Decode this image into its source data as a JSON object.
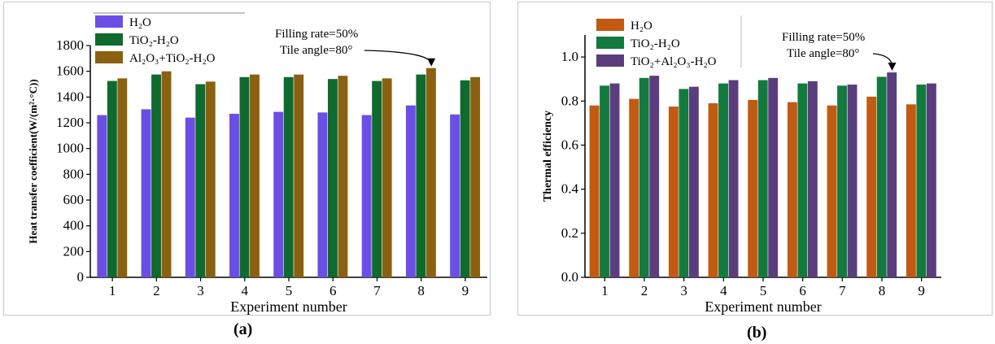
{
  "chart_data": [
    {
      "type": "bar",
      "xlabel": "Experiment number",
      "ylabel": "Heat transfer coefficient(W/(m²·°C))",
      "ylim": [
        0,
        1800
      ],
      "yticks": [
        "0",
        "200",
        "400",
        "600",
        "800",
        "1000",
        "1200",
        "1400",
        "1600",
        "1800"
      ],
      "categories": [
        "1",
        "2",
        "3",
        "4",
        "5",
        "6",
        "7",
        "8",
        "9"
      ],
      "legend_position": "top-left",
      "series": [
        {
          "name": "H₂O",
          "color": "#6a4ee6",
          "values": [
            1260,
            1305,
            1240,
            1270,
            1285,
            1280,
            1260,
            1335,
            1265
          ]
        },
        {
          "name": "TiO₂-H₂O",
          "color": "#0f6a2e",
          "values": [
            1525,
            1575,
            1500,
            1555,
            1555,
            1540,
            1525,
            1575,
            1530
          ]
        },
        {
          "name": "Al₂O₃+TiO₂-H₂O",
          "color": "#8a6110",
          "values": [
            1545,
            1600,
            1520,
            1575,
            1575,
            1565,
            1545,
            1625,
            1555
          ]
        }
      ],
      "annotation": {
        "line1": "Filling rate=50%",
        "line2": "Tile angle=80°",
        "target_category": "8"
      },
      "caption": "(a)"
    },
    {
      "type": "bar",
      "xlabel": "Experiment number",
      "ylabel": "Thermal efficiency",
      "ylim": [
        0,
        1.1
      ],
      "yticks": [
        "0.0",
        "0.2",
        "0.4",
        "0.6",
        "0.8",
        "1.0"
      ],
      "categories": [
        "1",
        "2",
        "3",
        "4",
        "5",
        "6",
        "7",
        "8",
        "9"
      ],
      "legend_position": "top-left",
      "series": [
        {
          "name": "H₂O",
          "color": "#c25a12",
          "values": [
            0.78,
            0.81,
            0.775,
            0.79,
            0.805,
            0.795,
            0.78,
            0.82,
            0.785
          ]
        },
        {
          "name": "TiO₂-H₂O",
          "color": "#137a3e",
          "values": [
            0.87,
            0.905,
            0.855,
            0.88,
            0.895,
            0.88,
            0.87,
            0.91,
            0.875
          ]
        },
        {
          "name": "TiO₂+Al₂O₃-H₂O",
          "color": "#5b3d7e",
          "values": [
            0.88,
            0.915,
            0.865,
            0.895,
            0.905,
            0.89,
            0.875,
            0.93,
            0.88
          ]
        }
      ],
      "annotation": {
        "line1": "Filling rate=50%",
        "line2": "Tile angle=80°",
        "target_category": "8"
      },
      "caption": "(b)"
    }
  ]
}
